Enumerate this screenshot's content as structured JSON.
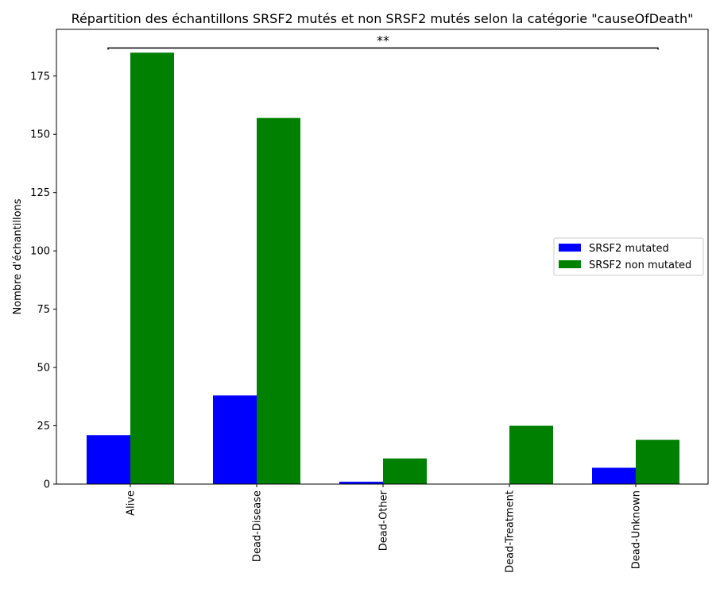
{
  "chart_data": {
    "type": "bar",
    "title": "Répartition des échantillons SRSF2 mutés et non SRSF2 mutés selon la catégorie \"causeOfDeath\"",
    "xlabel": "",
    "ylabel": "Nombre d'échantillons",
    "categories": [
      "Alive",
      "Dead-Disease",
      "Dead-Other",
      "Dead-Treatment",
      "Dead-Unknown"
    ],
    "series": [
      {
        "name": "SRSF2 mutated",
        "color": "#0000ff",
        "values": [
          21,
          38,
          1,
          0,
          7
        ]
      },
      {
        "name": "SRSF2 non mutated",
        "color": "#008000",
        "values": [
          185,
          157,
          11,
          25,
          19
        ]
      }
    ],
    "ylim": [
      0,
      195
    ],
    "yticks": [
      0,
      25,
      50,
      75,
      100,
      125,
      150,
      175
    ],
    "ytick_labels": [
      "0",
      "25",
      "50",
      "75",
      "100",
      "125",
      "150",
      "175"
    ],
    "legend_position": "center-right",
    "grid": false,
    "annotation": {
      "text": "**",
      "type": "significance-bracket",
      "y": 187,
      "spans": [
        "Alive",
        "Dead-Unknown"
      ]
    }
  }
}
